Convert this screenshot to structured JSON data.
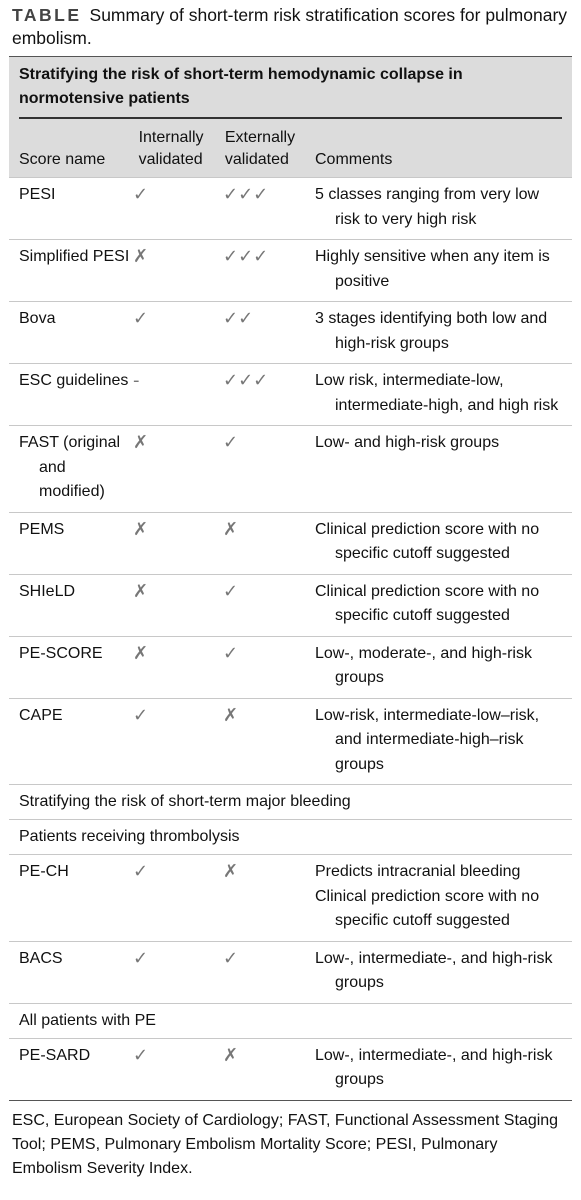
{
  "caption": {
    "label": "TABLE",
    "text": "Summary of short-term risk stratification scores for pulmonary embolism."
  },
  "table": {
    "section_title": "Stratifying the risk of short-term hemodynamic collapse in normotensive patients",
    "columns": [
      "Score name",
      "Internally validated",
      "Externally validated",
      "Comments"
    ],
    "rows": [
      {
        "cells": [
          "PESI",
          "✓",
          "✓✓✓",
          [
            "5 classes ranging from very low risk to very high risk"
          ]
        ]
      },
      {
        "cells": [
          "Simplified PESI",
          "✗",
          "✓✓✓",
          [
            "Highly sensitive when any item is positive"
          ]
        ]
      },
      {
        "cells": [
          "Bova",
          "✓",
          "✓✓",
          [
            "3 stages identifying both low and high-risk groups"
          ]
        ]
      },
      {
        "cells": [
          "ESC guidelines",
          "-",
          "✓✓✓",
          [
            "Low risk, intermediate-low, intermediate-high, and high risk"
          ]
        ]
      },
      {
        "cells": [
          "FAST (original and modified)",
          "✗",
          "✓",
          [
            "Low- and high-risk groups"
          ]
        ]
      },
      {
        "cells": [
          "PEMS",
          "✗",
          "✗",
          [
            "Clinical prediction score with no specific cutoff suggested"
          ]
        ]
      },
      {
        "cells": [
          "SHIeLD",
          "✗",
          "✓",
          [
            "Clinical prediction score with no specific cutoff suggested"
          ]
        ]
      },
      {
        "cells": [
          "PE-SCORE",
          "✗",
          "✓",
          [
            "Low-, moderate-, and high-risk groups"
          ]
        ]
      },
      {
        "cells": [
          "CAPE",
          "✓",
          "✗",
          [
            "Low-risk, intermediate-low–risk, and intermediate-high–risk groups"
          ]
        ]
      },
      {
        "section": "Stratifying the risk of short-term major bleeding"
      },
      {
        "section": "Patients receiving thrombolysis"
      },
      {
        "cells": [
          "PE-CH",
          "✓",
          "✗",
          [
            "Predicts intracranial bleeding",
            "Clinical prediction score with no specific cutoff suggested"
          ]
        ]
      },
      {
        "cells": [
          "BACS",
          "✓",
          "✓",
          [
            "Low-, intermediate-, and high-risk groups"
          ]
        ]
      },
      {
        "section": "All patients with PE"
      },
      {
        "cells": [
          "PE-SARD",
          "✓",
          "✗",
          [
            "Low-, intermediate-, and high-risk groups"
          ]
        ]
      }
    ]
  },
  "footnote": "ESC, European Society of Cardiology; FAST, Functional Assessment Staging Tool; PEMS, Pulmonary Embolism Mortality Score; PESI, Pulmonary Embolism Severity Index."
}
